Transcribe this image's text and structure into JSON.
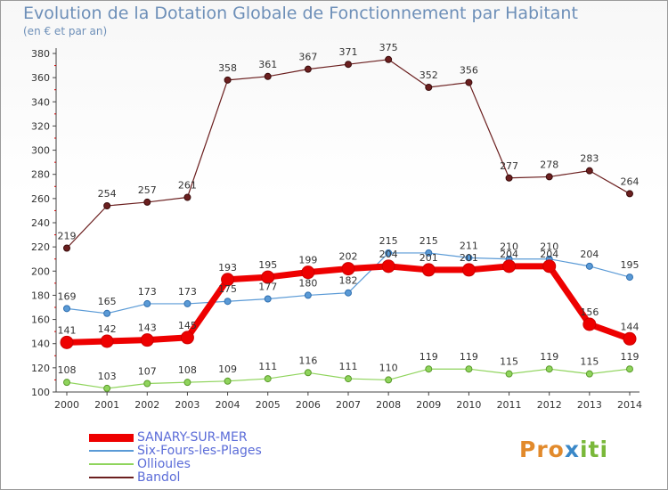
{
  "header": {
    "title": "Evolution de la Dotation Globale de Fonctionnement par Habitant",
    "subtitle": "(en € et par an)"
  },
  "logo": {
    "part1": "Pro",
    "part2": "x",
    "part3": "iti"
  },
  "chart_data": {
    "type": "line",
    "title": "Evolution de la Dotation Globale de Fonctionnement par Habitant",
    "subtitle": "(en € et par an)",
    "xlabel": "",
    "ylabel": "",
    "ylim": [
      100,
      380
    ],
    "ytick_step": 20,
    "grid": false,
    "legend_position": "bottom-left",
    "x": [
      "2000",
      "2001",
      "2002",
      "2003",
      "2004",
      "2005",
      "2006",
      "2007",
      "2008",
      "2009",
      "2010",
      "2011",
      "2012",
      "2013",
      "2014"
    ],
    "series": [
      {
        "name": "SANARY-SUR-MER",
        "color": "#ee0000",
        "values": [
          141,
          142,
          143,
          145,
          193,
          195,
          199,
          202,
          204,
          201,
          201,
          204,
          204,
          156,
          144
        ]
      },
      {
        "name": "Six-Fours-les-Plages",
        "color": "#5a9ad6",
        "values": [
          169,
          165,
          173,
          173,
          175,
          177,
          180,
          182,
          215,
          215,
          211,
          210,
          210,
          204,
          195
        ]
      },
      {
        "name": "Ollioules",
        "color": "#8fd45c",
        "values": [
          108,
          103,
          107,
          108,
          109,
          111,
          116,
          111,
          110,
          119,
          119,
          115,
          119,
          115,
          119
        ]
      },
      {
        "name": "Bandol",
        "color": "#6b1f1f",
        "values": [
          219,
          254,
          257,
          261,
          358,
          361,
          367,
          371,
          375,
          352,
          356,
          277,
          278,
          283,
          264
        ]
      }
    ]
  }
}
